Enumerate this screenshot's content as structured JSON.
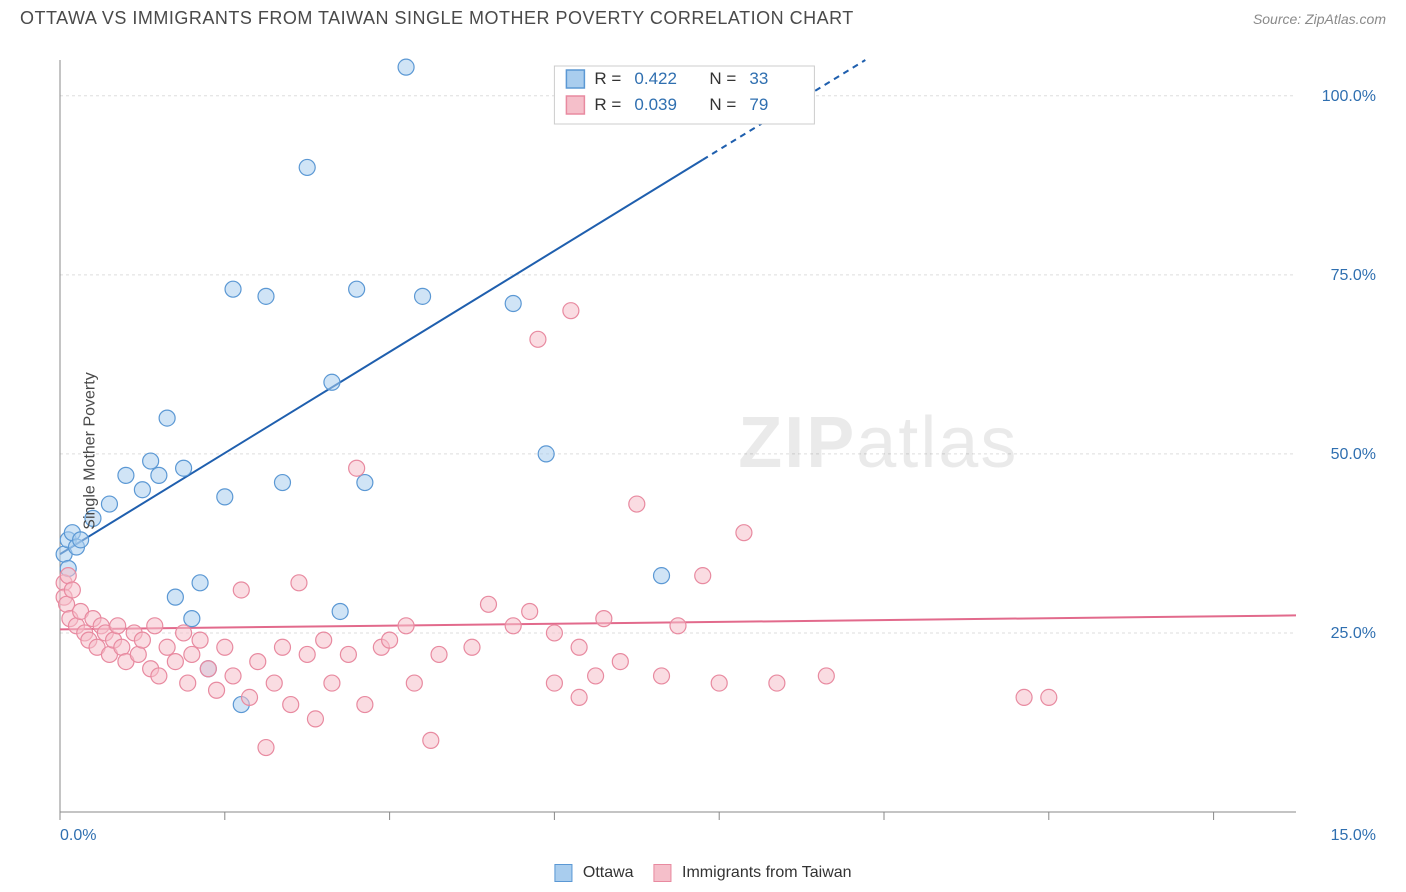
{
  "title": "OTTAWA VS IMMIGRANTS FROM TAIWAN SINGLE MOTHER POVERTY CORRELATION CHART",
  "source": "Source: ZipAtlas.com",
  "ylabel": "Single Mother Poverty",
  "watermark": {
    "bold": "ZIP",
    "light": "atlas"
  },
  "chart": {
    "type": "scatter",
    "xlim": [
      0,
      15
    ],
    "ylim": [
      0,
      105
    ],
    "x_ticks": [
      0,
      2,
      4,
      6,
      8,
      10,
      12,
      14
    ],
    "x_tick_labels": {
      "0": "0.0%",
      "15": "15.0%"
    },
    "y_gridlines": [
      25,
      50,
      75,
      100
    ],
    "y_tick_labels": {
      "25": "25.0%",
      "50": "50.0%",
      "75": "75.0%",
      "100": "100.0%"
    },
    "background_color": "#ffffff",
    "grid_color": "#dddddd",
    "axis_color": "#888888",
    "axis_label_color": "#2f6fb0",
    "marker_radius": 8,
    "marker_opacity": 0.55,
    "series": [
      {
        "name": "Ottawa",
        "color_fill": "#a9cdee",
        "color_stroke": "#5b98d4",
        "R": "0.422",
        "N": "33",
        "trend": {
          "slope": 7.06,
          "intercept": 36,
          "solid_until_x": 7.8,
          "color": "#1f5fae",
          "width": 2
        },
        "points": [
          [
            0.05,
            36
          ],
          [
            0.1,
            34
          ],
          [
            0.1,
            38
          ],
          [
            0.15,
            39
          ],
          [
            0.2,
            37
          ],
          [
            0.25,
            38
          ],
          [
            0.4,
            41
          ],
          [
            0.6,
            43
          ],
          [
            0.8,
            47
          ],
          [
            1.0,
            45
          ],
          [
            1.1,
            49
          ],
          [
            1.3,
            55
          ],
          [
            1.2,
            47
          ],
          [
            1.5,
            48
          ],
          [
            1.4,
            30
          ],
          [
            1.6,
            27
          ],
          [
            1.7,
            32
          ],
          [
            1.8,
            20
          ],
          [
            2.2,
            15
          ],
          [
            2.0,
            44
          ],
          [
            2.1,
            73
          ],
          [
            2.5,
            72
          ],
          [
            2.7,
            46
          ],
          [
            3.0,
            90
          ],
          [
            3.3,
            60
          ],
          [
            3.4,
            28
          ],
          [
            3.6,
            73
          ],
          [
            3.7,
            46
          ],
          [
            4.2,
            104
          ],
          [
            4.4,
            72
          ],
          [
            5.5,
            71
          ],
          [
            5.9,
            50
          ],
          [
            7.3,
            33
          ]
        ]
      },
      {
        "name": "Immigrants from Taiwan",
        "color_fill": "#f5bfca",
        "color_stroke": "#e88aa0",
        "R": "0.039",
        "N": "79",
        "trend": {
          "slope": 0.13,
          "intercept": 25.5,
          "solid_until_x": 15,
          "color": "#e26a8c",
          "width": 2
        },
        "points": [
          [
            0.05,
            32
          ],
          [
            0.05,
            30
          ],
          [
            0.08,
            29
          ],
          [
            0.1,
            33
          ],
          [
            0.12,
            27
          ],
          [
            0.15,
            31
          ],
          [
            0.2,
            26
          ],
          [
            0.25,
            28
          ],
          [
            0.3,
            25
          ],
          [
            0.35,
            24
          ],
          [
            0.4,
            27
          ],
          [
            0.45,
            23
          ],
          [
            0.5,
            26
          ],
          [
            0.55,
            25
          ],
          [
            0.6,
            22
          ],
          [
            0.65,
            24
          ],
          [
            0.7,
            26
          ],
          [
            0.75,
            23
          ],
          [
            0.8,
            21
          ],
          [
            0.9,
            25
          ],
          [
            0.95,
            22
          ],
          [
            1.0,
            24
          ],
          [
            1.1,
            20
          ],
          [
            1.15,
            26
          ],
          [
            1.2,
            19
          ],
          [
            1.3,
            23
          ],
          [
            1.4,
            21
          ],
          [
            1.5,
            25
          ],
          [
            1.55,
            18
          ],
          [
            1.6,
            22
          ],
          [
            1.7,
            24
          ],
          [
            1.8,
            20
          ],
          [
            1.9,
            17
          ],
          [
            2.0,
            23
          ],
          [
            2.1,
            19
          ],
          [
            2.2,
            31
          ],
          [
            2.3,
            16
          ],
          [
            2.4,
            21
          ],
          [
            2.5,
            9
          ],
          [
            2.6,
            18
          ],
          [
            2.7,
            23
          ],
          [
            2.8,
            15
          ],
          [
            2.9,
            32
          ],
          [
            3.0,
            22
          ],
          [
            3.1,
            13
          ],
          [
            3.2,
            24
          ],
          [
            3.3,
            18
          ],
          [
            3.5,
            22
          ],
          [
            3.6,
            48
          ],
          [
            3.7,
            15
          ],
          [
            3.9,
            23
          ],
          [
            4.0,
            24
          ],
          [
            4.2,
            26
          ],
          [
            4.3,
            18
          ],
          [
            4.5,
            10
          ],
          [
            4.6,
            22
          ],
          [
            5.0,
            23
          ],
          [
            5.2,
            29
          ],
          [
            5.5,
            26
          ],
          [
            5.7,
            28
          ],
          [
            5.8,
            66
          ],
          [
            6.0,
            25
          ],
          [
            6.2,
            70
          ],
          [
            6.3,
            23
          ],
          [
            6.5,
            19
          ],
          [
            6.6,
            27
          ],
          [
            6.8,
            21
          ],
          [
            7.0,
            43
          ],
          [
            7.3,
            19
          ],
          [
            7.5,
            26
          ],
          [
            7.8,
            33
          ],
          [
            8.0,
            18
          ],
          [
            8.3,
            39
          ],
          [
            8.7,
            18
          ],
          [
            9.3,
            19
          ],
          [
            11.7,
            16
          ],
          [
            12.0,
            16
          ],
          [
            6.0,
            18
          ],
          [
            6.3,
            16
          ]
        ]
      }
    ]
  },
  "top_legend": {
    "r_label": "R =",
    "n_label": "N ="
  },
  "bottom_legend": {
    "items": [
      "Ottawa",
      "Immigrants from Taiwan"
    ]
  }
}
